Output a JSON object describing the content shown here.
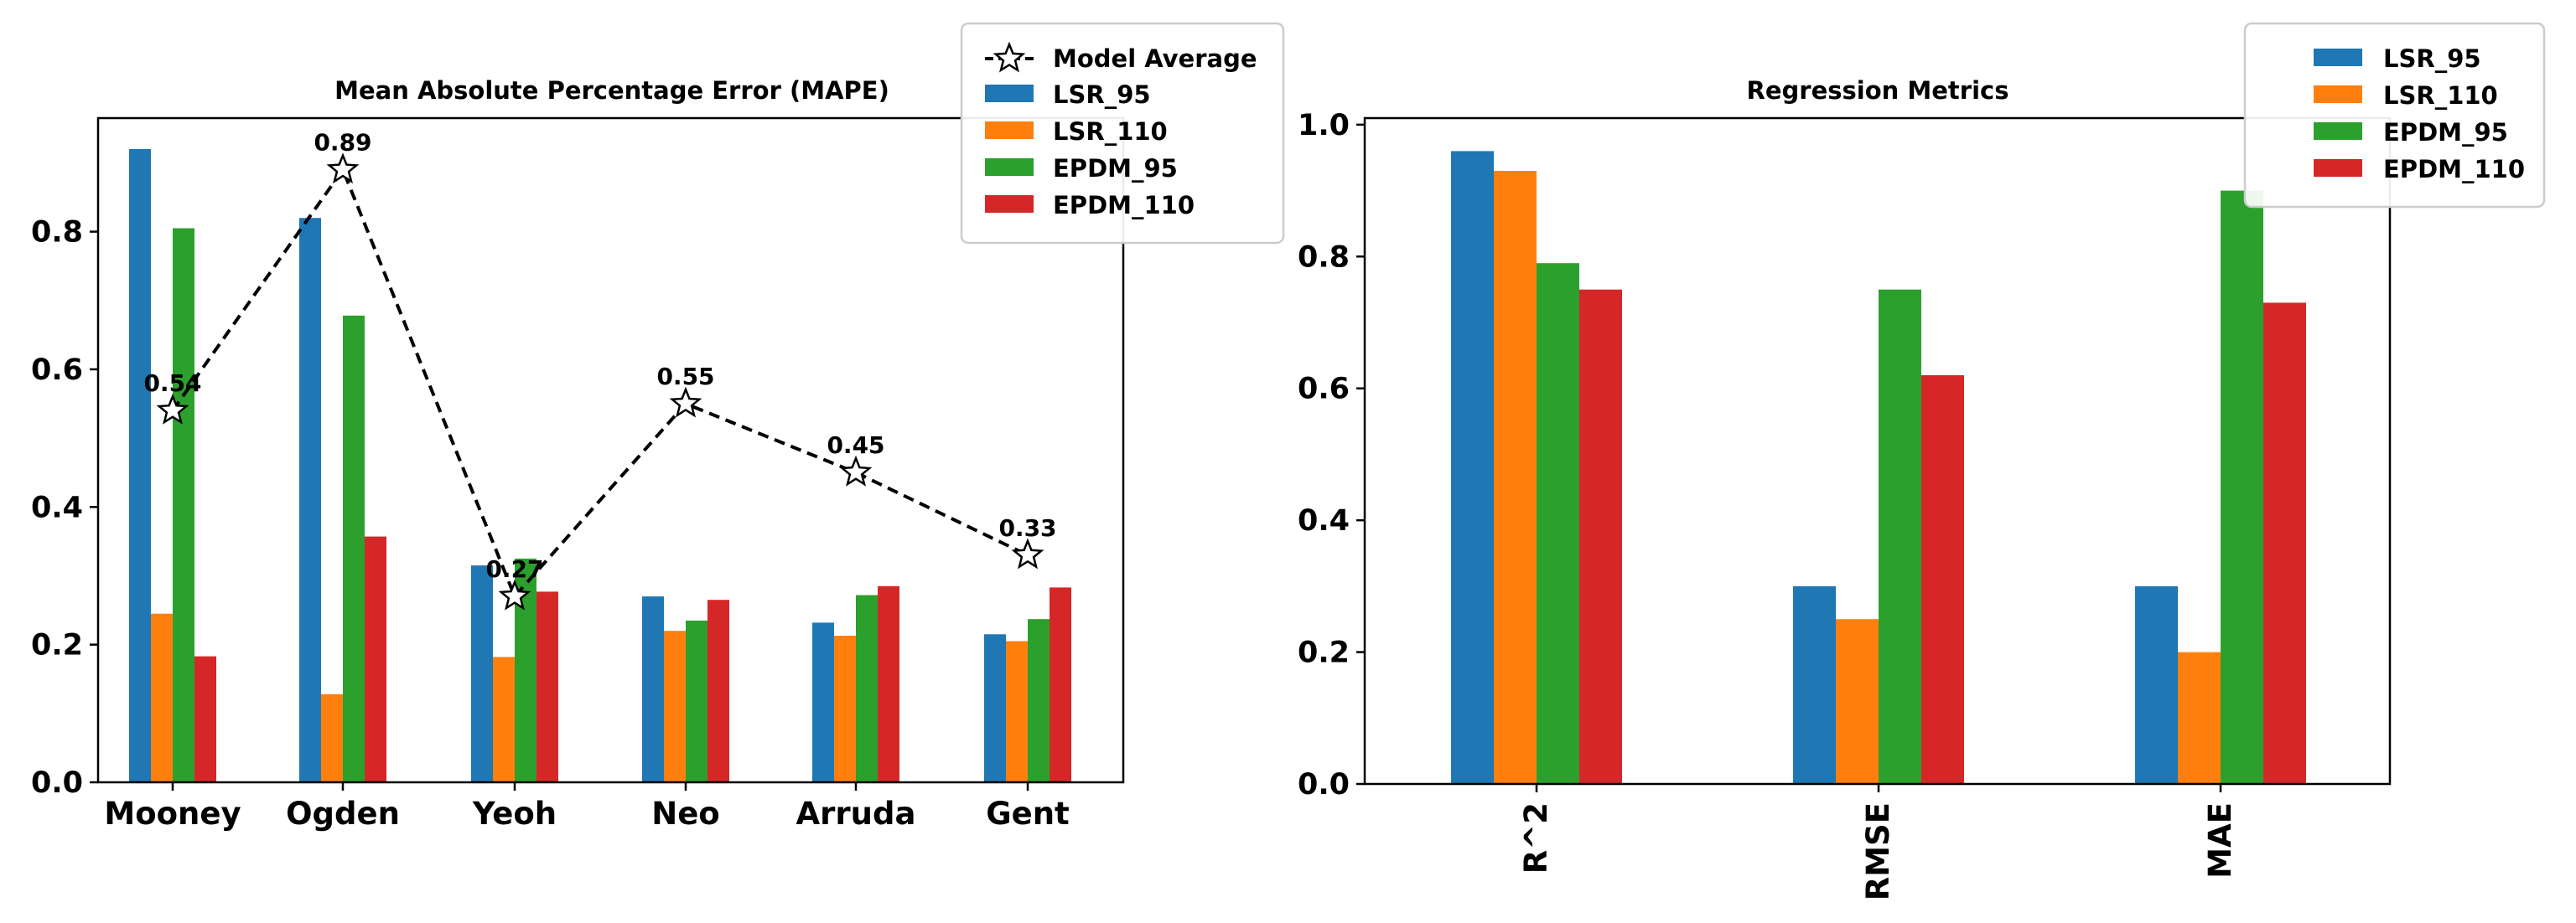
{
  "colors": {
    "LSR_95": "#1f77b4",
    "LSR_110": "#ff7f0e",
    "EPDM_95": "#2ca02c",
    "EPDM_110": "#d62728",
    "average": "#000000"
  },
  "chart_data": [
    {
      "type": "bar",
      "title": "Mean Absolute Percentage Error (MAPE)",
      "xlabel": "",
      "ylabel": "",
      "ylim": [
        0,
        0.965
      ],
      "yticks": [
        "0.0",
        "0.2",
        "0.4",
        "0.6",
        "0.8"
      ],
      "categories": [
        "Mooney",
        "Ogden",
        "Yeoh",
        "Neo",
        "Arruda",
        "Gent"
      ],
      "series": [
        {
          "name": "LSR_95",
          "values": [
            0.92,
            0.82,
            0.315,
            0.27,
            0.232,
            0.215
          ]
        },
        {
          "name": "LSR_110",
          "values": [
            0.245,
            0.128,
            0.182,
            0.22,
            0.213,
            0.205
          ]
        },
        {
          "name": "EPDM_95",
          "values": [
            0.805,
            0.678,
            0.325,
            0.235,
            0.272,
            0.237
          ]
        },
        {
          "name": "EPDM_110",
          "values": [
            0.183,
            0.357,
            0.277,
            0.265,
            0.285,
            0.283
          ]
        }
      ],
      "overlay": {
        "type": "line",
        "name": "Model Average",
        "marker": "star",
        "linestyle": "dashed",
        "values": [
          0.54,
          0.89,
          0.27,
          0.55,
          0.45,
          0.33
        ],
        "labels": [
          "0.54",
          "0.89",
          "0.27",
          "0.55",
          "0.45",
          "0.33"
        ]
      },
      "legend": {
        "placement": "top-right, outside axes",
        "entries": [
          "Model Average",
          "LSR_95",
          "LSR_110",
          "EPDM_95",
          "EPDM_110"
        ]
      },
      "grid": false
    },
    {
      "type": "bar",
      "title": "Regression Metrics",
      "xlabel": "",
      "ylabel": "",
      "ylim": [
        0,
        1.01
      ],
      "yticks": [
        "0.0",
        "0.2",
        "0.4",
        "0.6",
        "0.8",
        "1.0"
      ],
      "categories": [
        "R^2",
        "RMSE",
        "MAE"
      ],
      "series": [
        {
          "name": "LSR_95",
          "values": [
            0.96,
            0.3,
            0.3
          ]
        },
        {
          "name": "LSR_110",
          "values": [
            0.93,
            0.25,
            0.2
          ]
        },
        {
          "name": "EPDM_95",
          "values": [
            0.79,
            0.75,
            0.9
          ]
        },
        {
          "name": "EPDM_110",
          "values": [
            0.75,
            0.62,
            0.73
          ]
        }
      ],
      "legend": {
        "placement": "top-right",
        "entries": [
          "LSR_95",
          "LSR_110",
          "EPDM_95",
          "EPDM_110"
        ]
      },
      "grid": false
    }
  ]
}
